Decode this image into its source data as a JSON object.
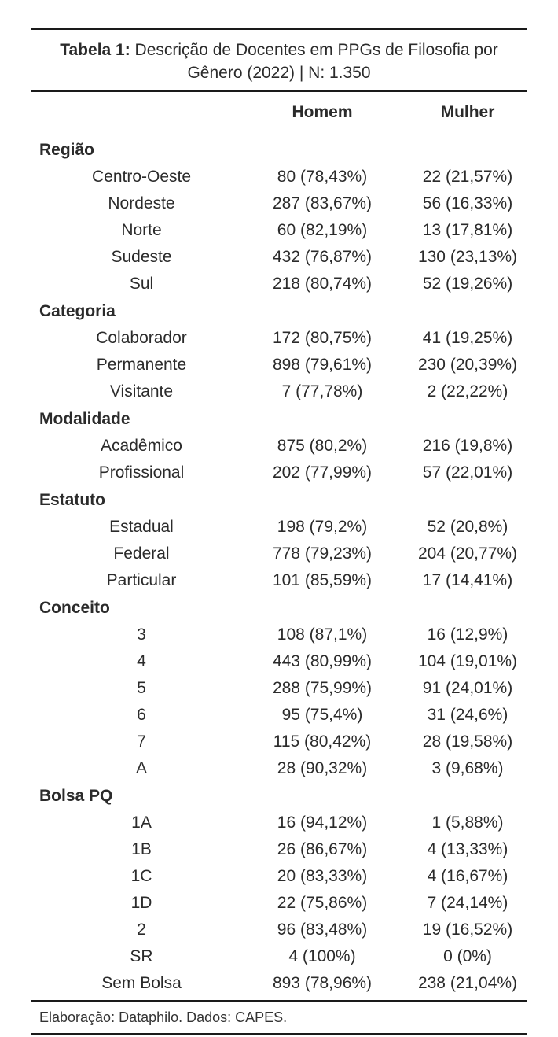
{
  "table": {
    "caption_bold": "Tabela 1:",
    "caption_rest": " Descrição de Docentes em PPGs de Filosofia por Gênero (2022) | N: 1.350",
    "columns": [
      "",
      "Homem",
      "Mulher"
    ],
    "groups": [
      {
        "title": "Região",
        "rows": [
          {
            "label": "Centro-Oeste",
            "homem": "80 (78,43%)",
            "mulher": "22 (21,57%)"
          },
          {
            "label": "Nordeste",
            "homem": "287 (83,67%)",
            "mulher": "56 (16,33%)"
          },
          {
            "label": "Norte",
            "homem": "60 (82,19%)",
            "mulher": "13 (17,81%)"
          },
          {
            "label": "Sudeste",
            "homem": "432 (76,87%)",
            "mulher": "130 (23,13%)"
          },
          {
            "label": "Sul",
            "homem": "218 (80,74%)",
            "mulher": "52 (19,26%)"
          }
        ]
      },
      {
        "title": "Categoria",
        "rows": [
          {
            "label": "Colaborador",
            "homem": "172 (80,75%)",
            "mulher": "41 (19,25%)"
          },
          {
            "label": "Permanente",
            "homem": "898 (79,61%)",
            "mulher": "230 (20,39%)"
          },
          {
            "label": "Visitante",
            "homem": "7 (77,78%)",
            "mulher": "2 (22,22%)"
          }
        ]
      },
      {
        "title": "Modalidade",
        "rows": [
          {
            "label": "Acadêmico",
            "homem": "875 (80,2%)",
            "mulher": "216 (19,8%)"
          },
          {
            "label": "Profissional",
            "homem": "202 (77,99%)",
            "mulher": "57 (22,01%)"
          }
        ]
      },
      {
        "title": "Estatuto",
        "rows": [
          {
            "label": "Estadual",
            "homem": "198 (79,2%)",
            "mulher": "52 (20,8%)"
          },
          {
            "label": "Federal",
            "homem": "778 (79,23%)",
            "mulher": "204 (20,77%)"
          },
          {
            "label": "Particular",
            "homem": "101 (85,59%)",
            "mulher": "17 (14,41%)"
          }
        ]
      },
      {
        "title": "Conceito",
        "rows": [
          {
            "label": "3",
            "homem": "108 (87,1%)",
            "mulher": "16 (12,9%)"
          },
          {
            "label": "4",
            "homem": "443 (80,99%)",
            "mulher": "104 (19,01%)"
          },
          {
            "label": "5",
            "homem": "288 (75,99%)",
            "mulher": "91 (24,01%)"
          },
          {
            "label": "6",
            "homem": "95 (75,4%)",
            "mulher": "31 (24,6%)"
          },
          {
            "label": "7",
            "homem": "115 (80,42%)",
            "mulher": "28 (19,58%)"
          },
          {
            "label": "A",
            "homem": "28 (90,32%)",
            "mulher": "3 (9,68%)"
          }
        ]
      },
      {
        "title": "Bolsa PQ",
        "rows": [
          {
            "label": "1A",
            "homem": "16 (94,12%)",
            "mulher": "1 (5,88%)"
          },
          {
            "label": "1B",
            "homem": "26 (86,67%)",
            "mulher": "4 (13,33%)"
          },
          {
            "label": "1C",
            "homem": "20 (83,33%)",
            "mulher": "4 (16,67%)"
          },
          {
            "label": "1D",
            "homem": "22 (75,86%)",
            "mulher": "7 (24,14%)"
          },
          {
            "label": "2",
            "homem": "96 (83,48%)",
            "mulher": "19 (16,52%)"
          },
          {
            "label": "SR",
            "homem": "4 (100%)",
            "mulher": "0 (0%)"
          },
          {
            "label": "Sem Bolsa",
            "homem": "893 (78,96%)",
            "mulher": "238 (21,04%)"
          }
        ]
      }
    ],
    "footer": "Elaboração: Dataphilo. Dados: CAPES."
  }
}
